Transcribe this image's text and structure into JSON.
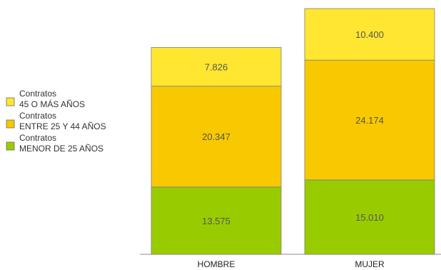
{
  "chart_data": {
    "type": "bar",
    "stacked": true,
    "categories": [
      "HOMBRE",
      "MUJER"
    ],
    "series": [
      {
        "name_line1": "Contratos",
        "name_line2": "MENOR DE 25 AÑOS",
        "color": "#99cc00",
        "values": [
          13575,
          15010
        ],
        "labels": [
          "13.575",
          "15.010"
        ]
      },
      {
        "name_line1": "Contratos",
        "name_line2": "ENTRE 25 Y 44 AÑOS",
        "color": "#f8c800",
        "values": [
          20347,
          24174
        ],
        "labels": [
          "20.347",
          "24.174"
        ]
      },
      {
        "name_line1": "Contratos",
        "name_line2": "45 O MÁS AÑOS",
        "color": "#ffe630",
        "values": [
          7826,
          10400
        ],
        "labels": [
          "7.826",
          "10.400"
        ]
      }
    ],
    "legend_position": "left",
    "legend_order": [
      2,
      1,
      0
    ],
    "grid": false
  }
}
